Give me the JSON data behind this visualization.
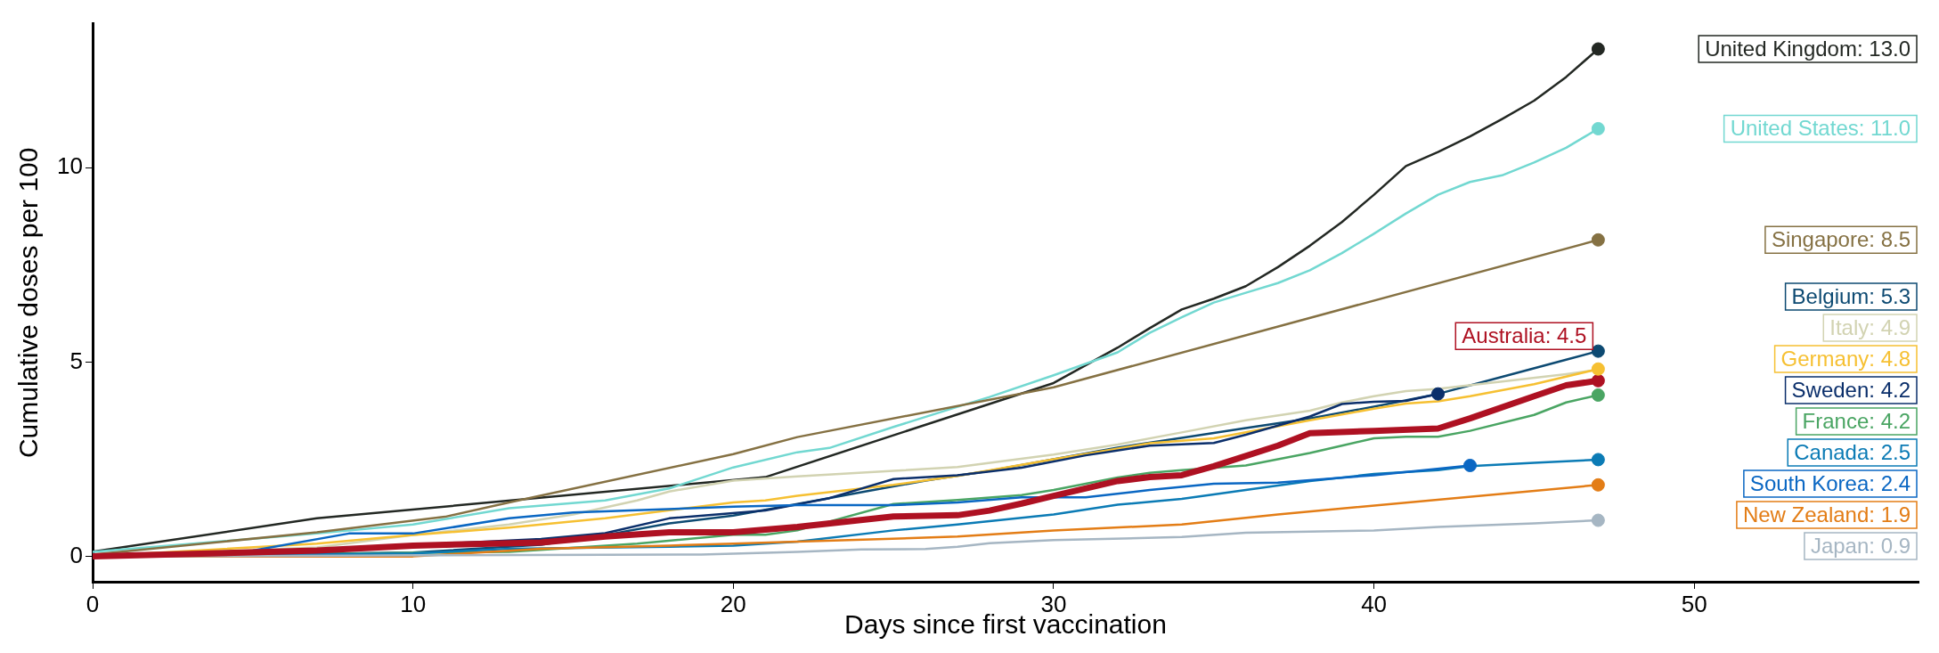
{
  "chart_data": {
    "type": "line",
    "xlabel": "Days since first vaccination",
    "ylabel": "Cumulative doses per 100",
    "xlim": [
      0,
      57
    ],
    "xticks": [
      0,
      10,
      20,
      30,
      40,
      50
    ],
    "ylim": [
      -0.65,
      13.7
    ],
    "yticks": [
      0,
      5,
      10
    ],
    "grid": false,
    "legend": false,
    "line_style": "solid",
    "series": [
      {
        "color": "#232823",
        "x": [
          0,
          7,
          21,
          30,
          32,
          33,
          34,
          35,
          36,
          37,
          38,
          39,
          40,
          41,
          42,
          43,
          44,
          45,
          46,
          47
        ],
        "values": [
          0.12,
          0.98,
          2.04,
          4.46,
          5.37,
          5.87,
          6.35,
          6.63,
          6.95,
          7.44,
          7.99,
          8.6,
          9.3,
          10.04,
          10.4,
          10.8,
          11.25,
          11.72,
          12.33,
          13.05
        ]
      },
      {
        "color": "#72d8d1",
        "x": [
          0,
          7,
          10,
          13,
          16,
          18,
          20,
          22,
          23,
          25,
          27,
          28,
          30,
          32,
          33,
          34,
          35,
          36,
          37,
          38,
          39,
          40,
          41,
          42,
          43,
          44,
          45,
          46,
          47
        ],
        "values": [
          0.12,
          0.59,
          0.82,
          1.24,
          1.44,
          1.75,
          2.29,
          2.68,
          2.79,
          3.33,
          3.85,
          4.1,
          4.66,
          5.25,
          5.75,
          6.15,
          6.53,
          6.78,
          7.03,
          7.36,
          7.8,
          8.3,
          8.82,
          9.3,
          9.63,
          9.8,
          10.13,
          10.51,
          11.0
        ]
      },
      {
        "color": "#857143",
        "x": [
          0,
          7,
          11,
          13,
          20,
          22,
          30,
          47
        ],
        "values": [
          0.05,
          0.62,
          1.02,
          1.39,
          2.63,
          3.07,
          4.35,
          8.14
        ]
      },
      {
        "color": "#0d4a72",
        "x": [
          0,
          10,
          14,
          16,
          18,
          20,
          22,
          24,
          26,
          28,
          30,
          32,
          34,
          36,
          38,
          40,
          42,
          44,
          46,
          47
        ],
        "values": [
          0,
          0.1,
          0.3,
          0.55,
          0.85,
          1.05,
          1.35,
          1.65,
          1.95,
          2.2,
          2.5,
          2.8,
          3.05,
          3.3,
          3.55,
          3.85,
          4.18,
          4.62,
          5.06,
          5.28
        ]
      },
      {
        "color": "#d2d3b2",
        "x": [
          0,
          7,
          10,
          13,
          15,
          17,
          18,
          20,
          22,
          25,
          27,
          30,
          32,
          34,
          36,
          38,
          39,
          40,
          41,
          42,
          44,
          46,
          47
        ],
        "values": [
          0,
          0.23,
          0.55,
          0.82,
          1.08,
          1.44,
          1.67,
          1.95,
          2.06,
          2.2,
          2.3,
          2.62,
          2.88,
          3.19,
          3.5,
          3.75,
          3.96,
          4.12,
          4.25,
          4.31,
          4.5,
          4.69,
          4.8
        ]
      },
      {
        "color": "#f6c032",
        "x": [
          0,
          7,
          10,
          13,
          16,
          20,
          21,
          22,
          25,
          27,
          30,
          33,
          35,
          38,
          40,
          41,
          42,
          43,
          45,
          47
        ],
        "values": [
          0,
          0.33,
          0.55,
          0.74,
          0.98,
          1.39,
          1.44,
          1.56,
          1.84,
          2.07,
          2.5,
          2.91,
          3.04,
          3.5,
          3.8,
          3.93,
          3.99,
          4.12,
          4.43,
          4.82
        ]
      },
      {
        "color": "#0b2f6b",
        "x": [
          0,
          5,
          14,
          16,
          18,
          21,
          23,
          25,
          27,
          29,
          31,
          33,
          35,
          36,
          38,
          39,
          40,
          41,
          42
        ],
        "values": [
          0,
          0.1,
          0.45,
          0.6,
          0.98,
          1.18,
          1.5,
          1.99,
          2.09,
          2.28,
          2.6,
          2.85,
          2.92,
          3.13,
          3.6,
          3.92,
          3.98,
          4.0,
          4.18
        ]
      },
      {
        "color": "#4aa563",
        "x": [
          0,
          13,
          17,
          20,
          21,
          22,
          25,
          27,
          29,
          30,
          32,
          33,
          34,
          36,
          38,
          39,
          40,
          41,
          42,
          43,
          45,
          46,
          47
        ],
        "values": [
          0,
          0.12,
          0.33,
          0.56,
          0.56,
          0.67,
          1.35,
          1.45,
          1.58,
          1.71,
          2.03,
          2.15,
          2.22,
          2.34,
          2.66,
          2.85,
          3.04,
          3.08,
          3.08,
          3.23,
          3.64,
          3.96,
          4.15
        ]
      },
      {
        "color": "#0b7bb5",
        "x": [
          0,
          10,
          13,
          18,
          20,
          22,
          25,
          27,
          30,
          32,
          34,
          36,
          38,
          40,
          42,
          43,
          45,
          47
        ],
        "values": [
          0,
          0.08,
          0.2,
          0.25,
          0.28,
          0.38,
          0.67,
          0.82,
          1.08,
          1.33,
          1.48,
          1.71,
          1.94,
          2.12,
          2.22,
          2.32,
          2.41,
          2.49
        ]
      },
      {
        "color": "#0a67c3",
        "x": [
          0,
          5,
          8,
          10,
          13,
          15,
          20,
          22,
          25,
          27,
          29,
          31,
          33,
          35,
          37,
          40,
          43
        ],
        "values": [
          0,
          0.15,
          0.59,
          0.59,
          0.98,
          1.13,
          1.28,
          1.32,
          1.32,
          1.39,
          1.52,
          1.52,
          1.71,
          1.87,
          1.9,
          2.09,
          2.34
        ]
      },
      {
        "color": "#e37d16",
        "x": [
          0,
          10,
          14,
          18,
          20,
          22,
          27,
          30,
          34,
          37,
          47
        ],
        "values": [
          0,
          0,
          0.2,
          0.28,
          0.33,
          0.38,
          0.51,
          0.67,
          0.82,
          1.08,
          1.84
        ]
      },
      {
        "color": "#a6b6c3",
        "x": [
          0,
          19,
          22,
          24,
          26,
          27,
          28,
          30,
          34,
          36,
          40,
          42,
          45,
          47
        ],
        "values": [
          0,
          0.05,
          0.12,
          0.18,
          0.19,
          0.25,
          0.34,
          0.42,
          0.5,
          0.61,
          0.67,
          0.76,
          0.85,
          0.93
        ]
      },
      {
        "color": "#ae1122",
        "x": [
          0,
          7,
          10,
          14,
          16,
          18,
          20,
          22,
          25,
          27,
          28,
          29,
          30,
          32,
          33,
          34,
          35,
          37,
          38,
          40,
          42,
          43,
          45,
          46,
          47
        ],
        "values": [
          0,
          0.15,
          0.28,
          0.36,
          0.51,
          0.62,
          0.62,
          0.76,
          1.03,
          1.06,
          1.18,
          1.36,
          1.56,
          1.94,
          2.04,
          2.09,
          2.32,
          2.85,
          3.17,
          3.23,
          3.29,
          3.55,
          4.12,
          4.4,
          4.52
        ]
      },
      {
        "type": "scatter",
        "marker": "circle",
        "color": "#232823",
        "x": [
          47
        ],
        "values": [
          13.05
        ]
      },
      {
        "type": "scatter",
        "marker": "circle",
        "color": "#72d8d1",
        "x": [
          47
        ],
        "values": [
          11.0
        ]
      },
      {
        "type": "scatter",
        "marker": "circle",
        "color": "#857143",
        "x": [
          47
        ],
        "values": [
          8.14
        ]
      },
      {
        "type": "scatter",
        "marker": "circle",
        "color": "#0d4a72",
        "x": [
          47
        ],
        "values": [
          5.28
        ]
      },
      {
        "type": "scatter",
        "marker": "circle",
        "color": "#f6c032",
        "x": [
          47
        ],
        "values": [
          4.82
        ]
      },
      {
        "type": "scatter",
        "marker": "circle",
        "color": "#0b2f6b",
        "x": [
          42
        ],
        "values": [
          4.18
        ]
      },
      {
        "type": "scatter",
        "marker": "circle",
        "color": "#4aa563",
        "x": [
          47
        ],
        "values": [
          4.15
        ]
      },
      {
        "type": "scatter",
        "marker": "circle",
        "color": "#0b7bb5",
        "x": [
          47
        ],
        "values": [
          2.49
        ]
      },
      {
        "type": "scatter",
        "marker": "circle",
        "color": "#0a67c3",
        "x": [
          43
        ],
        "values": [
          2.34
        ]
      },
      {
        "type": "scatter",
        "marker": "circle",
        "color": "#e37d16",
        "x": [
          47
        ],
        "values": [
          1.84
        ]
      },
      {
        "type": "scatter",
        "marker": "circle",
        "color": "#a6b6c3",
        "x": [
          47
        ],
        "values": [
          0.93
        ]
      },
      {
        "type": "scatter",
        "marker": "circle",
        "color": "#ae1122",
        "x": [
          47
        ],
        "values": [
          4.52
        ]
      }
    ],
    "annotations": [
      "United Kingdom: 13.0",
      "United States: 11.0",
      "Singapore: 8.5",
      "Belgium: 5.3",
      "Italy: 4.9",
      "Germany: 4.8",
      "Sweden: 4.2",
      "France: 4.2",
      "Canada: 2.5",
      "South Korea: 2.4",
      "New Zealand: 1.9",
      "Japan: 0.9",
      {
        "text": "Australia: 4.5",
        "x": 47,
        "y": 4.52
      }
    ]
  }
}
